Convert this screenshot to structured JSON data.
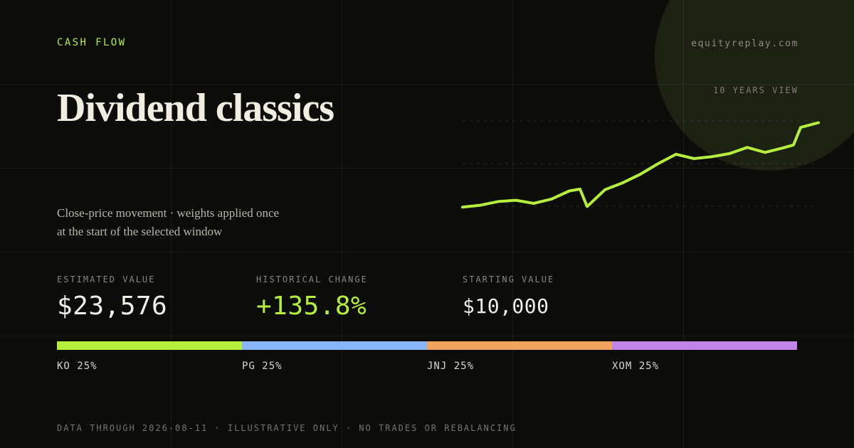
{
  "header": {
    "eyebrow": "CASH FLOW",
    "site": "equityreplay.com",
    "range_label": "10 YEARS VIEW",
    "title": "Dividend classics",
    "subtitle_line1": "Close-price movement · weights applied once",
    "subtitle_line2": "at the start of the selected window"
  },
  "stats": {
    "estimated_label": "ESTIMATED VALUE",
    "estimated_value": "$23,576",
    "change_label": "HISTORICAL CHANGE",
    "change_value": "+135.8%",
    "start_label": "STARTING VALUE",
    "start_value": "$10,000"
  },
  "allocations": [
    {
      "ticker": "KO",
      "weight_label": "25%",
      "weight": 25,
      "color": "#b5ef3c"
    },
    {
      "ticker": "PG",
      "weight_label": "25%",
      "weight": 25,
      "color": "#8ab4f8"
    },
    {
      "ticker": "JNJ",
      "weight_label": "25%",
      "weight": 25,
      "color": "#f0a35c"
    },
    {
      "ticker": "XOM",
      "weight_label": "25%",
      "weight": 25,
      "color": "#c084e8"
    }
  ],
  "footer": "DATA THROUGH 2026-08-11 · ILLUSTRATIVE ONLY · NO TRADES OR REBALANCING",
  "colors": {
    "accent": "#b5ef3c",
    "background": "#0c0d0a"
  },
  "chart_data": {
    "type": "line",
    "title": "",
    "xlabel": "",
    "ylabel": "",
    "grid": true,
    "x": [
      0,
      0.5,
      1,
      1.5,
      2,
      2.5,
      3,
      3.3,
      3.5,
      4,
      4.5,
      5,
      5.5,
      6,
      6.5,
      7,
      7.5,
      8,
      8.5,
      9,
      9.3,
      9.5,
      10
    ],
    "ylim": [
      9000,
      25000
    ],
    "series": [
      {
        "values": [
          10000,
          10300,
          10900,
          11100,
          10600,
          11300,
          12600,
          12900,
          10100,
          12800,
          13900,
          15300,
          17000,
          18500,
          17800,
          18100,
          18600,
          19600,
          18800,
          19500,
          20000,
          22800,
          23576
        ]
      }
    ]
  }
}
